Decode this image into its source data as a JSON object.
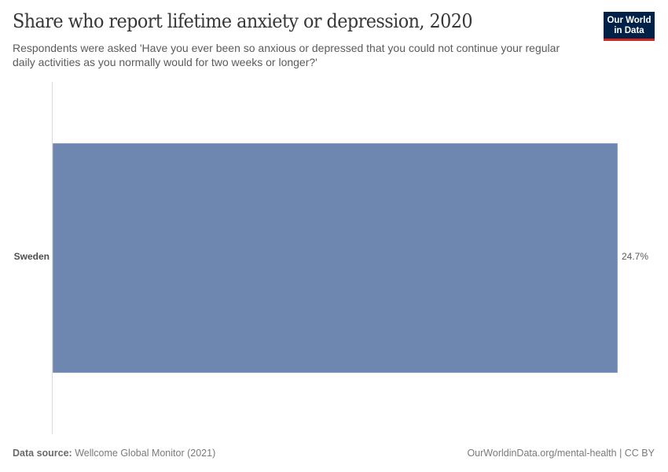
{
  "header": {
    "title": "Share who report lifetime anxiety or depression, 2020",
    "subtitle": "Respondents were asked 'Have you ever been so anxious or depressed that you could not continue your regular daily activities as you normally would for two weeks or longer?'"
  },
  "logo": {
    "line1": "Our World",
    "line2": "in Data",
    "bg_color": "#002147",
    "accent_color": "#ce261e"
  },
  "footer": {
    "source_label": "Data source:",
    "source_value": "Wellcome Global Monitor (2021)",
    "url_license": "OurWorldinData.org/mental-health | CC BY"
  },
  "colors": {
    "bar": "#6e87b0",
    "axis": "#dcdcdc"
  },
  "chart_data": {
    "type": "bar",
    "orientation": "horizontal",
    "title": "Share who report lifetime anxiety or depression, 2020",
    "subtitle": "Respondents were asked 'Have you ever been so anxious or depressed that you could not continue your regular daily activities as you normally would for two weeks or longer?'",
    "categories": [
      "Sweden"
    ],
    "values": [
      24.7
    ],
    "value_labels": [
      "24.7%"
    ],
    "unit": "%",
    "xlabel": "",
    "ylabel": "",
    "grid": false,
    "legend": null,
    "source": "Wellcome Global Monitor (2021)"
  }
}
